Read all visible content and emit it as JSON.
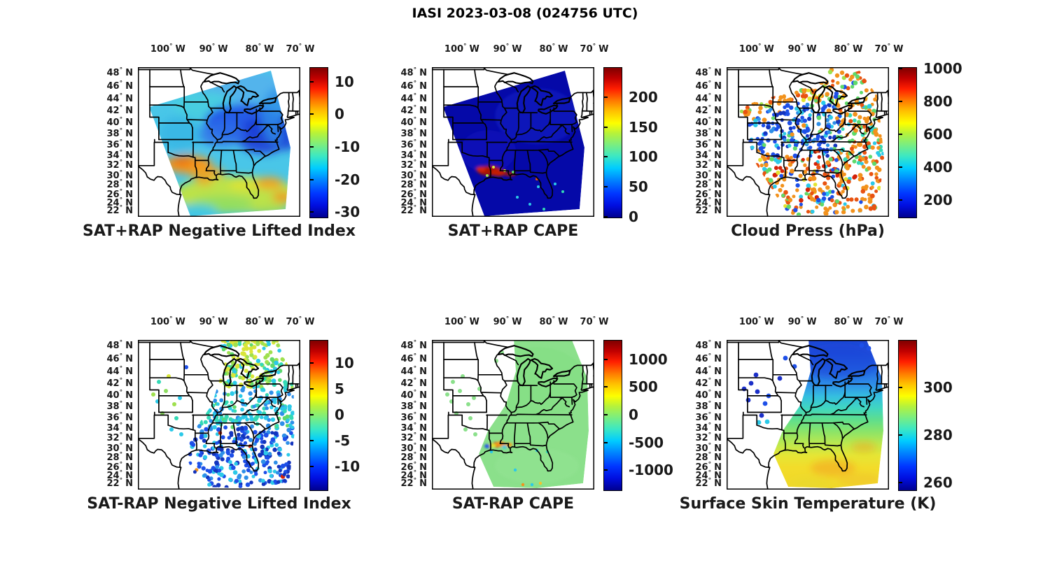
{
  "figure_title": "IASI 2023-03-08 (024756 UTC)",
  "axes": {
    "lon_tick_labels": [
      {
        "deg": "100",
        "dir": "W"
      },
      {
        "deg": "90",
        "dir": "W"
      },
      {
        "deg": "80",
        "dir": "W"
      },
      {
        "deg": "70",
        "dir": "W"
      }
    ],
    "lat_tick_labels": [
      {
        "deg": "48",
        "dir": "N"
      },
      {
        "deg": "46",
        "dir": "N"
      },
      {
        "deg": "44",
        "dir": "N"
      },
      {
        "deg": "42",
        "dir": "N"
      },
      {
        "deg": "40",
        "dir": "N"
      },
      {
        "deg": "38",
        "dir": "N"
      },
      {
        "deg": "36",
        "dir": "N"
      },
      {
        "deg": "34",
        "dir": "N"
      },
      {
        "deg": "32",
        "dir": "N"
      },
      {
        "deg": "30",
        "dir": "N"
      },
      {
        "deg": "28",
        "dir": "N"
      },
      {
        "deg": "26",
        "dir": "N"
      },
      {
        "deg": "24",
        "dir": "N"
      },
      {
        "deg": "22",
        "dir": "N"
      }
    ]
  },
  "panels": [
    {
      "id": "satprap_nli",
      "title": "SAT+RAP Negative Lifted Index",
      "colorbar": {
        "colormap": "jet",
        "ticks": [
          "10",
          "0",
          "-10",
          "-20",
          "-30"
        ],
        "tick_values": [
          10,
          0,
          -10,
          -20,
          -30
        ],
        "range": [
          -31.5,
          14.5
        ]
      }
    },
    {
      "id": "satprap_cape",
      "title": "SAT+RAP CAPE",
      "colorbar": {
        "colormap": "jet",
        "ticks": [
          "200",
          "150",
          "100",
          "50",
          "0"
        ],
        "tick_values": [
          200,
          150,
          100,
          50,
          0
        ],
        "range": [
          0,
          250
        ]
      }
    },
    {
      "id": "cloud_press",
      "title": "Cloud Press (hPa)",
      "colorbar": {
        "colormap": "jet",
        "ticks": [
          "1000",
          "800",
          "600",
          "400",
          "200"
        ],
        "tick_values": [
          1000,
          800,
          600,
          400,
          200
        ],
        "range": [
          100,
          1010
        ]
      }
    },
    {
      "id": "satmrap_nli",
      "title": "SAT-RAP Negative Lifted Index",
      "colorbar": {
        "colormap": "jet",
        "ticks": [
          "10",
          "5",
          "0",
          "-5",
          "-10"
        ],
        "tick_values": [
          10,
          5,
          0,
          -5,
          -10
        ],
        "range": [
          -14.5,
          14.5
        ]
      }
    },
    {
      "id": "satmrap_cape",
      "title": "SAT-RAP CAPE",
      "colorbar": {
        "colormap": "jet",
        "ticks": [
          "1000",
          "500",
          "0",
          "-500",
          "-1000"
        ],
        "tick_values": [
          1000,
          500,
          0,
          -500,
          -1000
        ],
        "range": [
          -1350,
          1350
        ]
      }
    },
    {
      "id": "skin_temp",
      "title": "Surface Skin Temperature (K)",
      "colorbar": {
        "colormap": "jet",
        "ticks": [
          "300",
          "280",
          "260"
        ],
        "tick_values": [
          300,
          280,
          260
        ],
        "range": [
          257,
          320
        ]
      }
    }
  ],
  "chart_data": [
    {
      "type": "heatmap",
      "subtype": "geographic-swath",
      "title": "SAT+RAP Negative Lifted Index",
      "colormap": "jet",
      "colorbar_ticks": [
        10,
        0,
        -10,
        -20,
        -30
      ],
      "colorbar_range": [
        -31.5,
        14.5
      ],
      "lon_ticks_degW": [
        100,
        90,
        80,
        70
      ],
      "lat_ticks_degN": [
        48,
        46,
        44,
        42,
        40,
        38,
        36,
        34,
        32,
        30,
        28,
        26,
        24,
        22
      ],
      "regions": [
        {
          "area": "northern swath (MN-WI-MI, 42-49N)",
          "approx_value": [
            -22,
            -13
          ],
          "color": "cyan-blue"
        },
        {
          "area": "Ohio valley / mid-Atlantic (36-42N)",
          "approx_value": [
            -27,
            -18
          ],
          "color": "dark blue"
        },
        {
          "area": "Texas-Louisiana band (30-33N)",
          "approx_value": [
            2,
            8
          ],
          "color": "orange"
        },
        {
          "area": "Gulf of Mexico (22-30N)",
          "approx_value": [
            -9,
            -1
          ],
          "color": "yellow-green with orange patches"
        }
      ]
    },
    {
      "type": "heatmap",
      "subtype": "geographic-swath",
      "title": "SAT+RAP CAPE",
      "colormap": "jet",
      "colorbar_ticks": [
        200,
        150,
        100,
        50,
        0
      ],
      "colorbar_range": [
        0,
        250
      ],
      "lon_ticks_degW": [
        100,
        90,
        80,
        70
      ],
      "lat_ticks_degN": [
        48,
        46,
        44,
        42,
        40,
        38,
        36,
        34,
        32,
        30,
        28,
        26,
        24,
        22
      ],
      "regions": [
        {
          "area": "whole swath background",
          "approx_value": [
            0,
            20
          ],
          "color": "dark blue"
        },
        {
          "area": "Louisiana coast cluster (29-31N, 88-93W)",
          "approx_value": [
            220,
            250
          ],
          "color": "dark red"
        },
        {
          "area": "scattered specks Gulf / Florida",
          "approx_value": [
            60,
            160
          ],
          "color": "cyan-yellow"
        }
      ]
    },
    {
      "type": "scatter",
      "subtype": "geographic-scatter",
      "title": "Cloud Press (hPa)",
      "colormap": "jet",
      "colorbar_ticks": [
        1000,
        800,
        600,
        400,
        200
      ],
      "colorbar_range": [
        100,
        1010
      ],
      "lon_ticks_degW": [
        100,
        90,
        80,
        70
      ],
      "lat_ticks_degN": [
        48,
        46,
        44,
        42,
        40,
        38,
        36,
        34,
        32,
        30,
        28,
        26,
        24,
        22
      ],
      "regions": [
        {
          "area": "NW swath edge and far north",
          "approx_value": [
            700,
            900
          ],
          "color": "orange"
        },
        {
          "area": "central swath (IA-MO-IL-IN, 36-44N)",
          "approx_value": [
            150,
            350
          ],
          "color": "blue"
        },
        {
          "area": "MS/AL cluster (~33N)",
          "approx_value": [
            900,
            1000
          ],
          "color": "dark red"
        },
        {
          "area": "Gulf and southeast / east coast",
          "approx_value": [
            650,
            900
          ],
          "color": "orange with blue-cyan clusters"
        }
      ]
    },
    {
      "type": "scatter",
      "subtype": "geographic-scatter",
      "title": "SAT-RAP Negative Lifted Index",
      "colormap": "jet",
      "colorbar_ticks": [
        10,
        5,
        0,
        -5,
        -10
      ],
      "colorbar_range": [
        -14.5,
        14.5
      ],
      "lon_ticks_degW": [
        100,
        90,
        80,
        70
      ],
      "lat_ticks_degN": [
        48,
        46,
        44,
        42,
        40,
        38,
        36,
        34,
        32,
        30,
        28,
        26,
        24,
        22
      ],
      "regions": [
        {
          "area": "Great Lakes / north (42-49N)",
          "approx_value": [
            0,
            4
          ],
          "color": "green-yellow"
        },
        {
          "area": "mid-south (34-42N)",
          "approx_value": [
            -6,
            -2
          ],
          "color": "cyan"
        },
        {
          "area": "Gulf of Mexico (22-32N)",
          "approx_value": [
            -13,
            -6
          ],
          "color": "blue / dark blue"
        },
        {
          "area": "sparse dots NE-KS (west)",
          "approx_value": [
            -3,
            2
          ],
          "color": "green-cyan"
        }
      ]
    },
    {
      "type": "heatmap",
      "subtype": "geographic-swath",
      "title": "SAT-RAP CAPE",
      "colormap": "jet",
      "colorbar_ticks": [
        1000,
        500,
        0,
        -500,
        -1000
      ],
      "colorbar_range": [
        -1350,
        1350
      ],
      "lon_ticks_degW": [
        100,
        90,
        80,
        70
      ],
      "lat_ticks_degN": [
        48,
        46,
        44,
        42,
        40,
        38,
        36,
        34,
        32,
        30,
        28,
        26,
        24,
        22
      ],
      "regions": [
        {
          "area": "entire swath",
          "approx_value": [
            -50,
            50
          ],
          "color": "light green"
        },
        {
          "area": "Louisiana coast cluster (~30N 91W)",
          "approx_value": [
            500,
            1100
          ],
          "color": "orange-red with blue speck -500"
        },
        {
          "area": "scattered Gulf specks",
          "approx_value": [
            -400,
            300
          ],
          "color": "cyan / orange"
        }
      ]
    },
    {
      "type": "heatmap",
      "subtype": "geographic-swath",
      "title": "Surface Skin Temperature (K)",
      "colormap": "jet",
      "colorbar_ticks": [
        300,
        280,
        260
      ],
      "colorbar_range": [
        257,
        320
      ],
      "lon_ticks_degW": [
        100,
        90,
        80,
        70
      ],
      "lat_ticks_degN": [
        48,
        46,
        44,
        42,
        40,
        38,
        36,
        34,
        32,
        30,
        28,
        26,
        24,
        22
      ],
      "regions": [
        {
          "area": "north Great Lakes (44-49N)",
          "approx_value": [
            258,
            266
          ],
          "color": "blue"
        },
        {
          "area": "Ohio valley / mid-south (34-42N)",
          "approx_value": [
            272,
            284
          ],
          "color": "cyan-green"
        },
        {
          "area": "Gulf of Mexico (22-30N)",
          "approx_value": [
            292,
            302
          ],
          "color": "yellow with orange patches"
        },
        {
          "area": "isolated dots NE-KS-MN (west)",
          "approx_value": [
            258,
            263
          ],
          "color": "dark blue"
        }
      ]
    }
  ]
}
